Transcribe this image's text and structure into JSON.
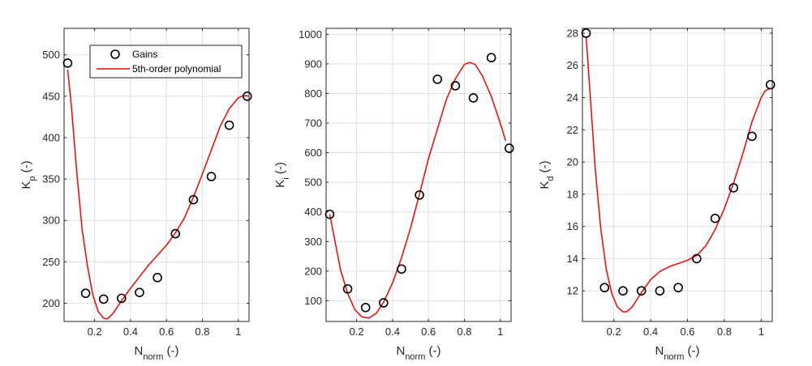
{
  "chart_data": [
    {
      "type": "scatter",
      "title": "",
      "xlabel": {
        "main": "N",
        "sub": "norm",
        "suffix": " (-)"
      },
      "ylabel": {
        "main": "K",
        "sub": "p",
        "suffix": " (-)"
      },
      "xlim": [
        0.03,
        1.06
      ],
      "ylim": [
        178,
        532
      ],
      "xticks": [
        0.2,
        0.4,
        0.6,
        0.8,
        1
      ],
      "xtick_labels": [
        "0.2",
        "0.4",
        "0.6",
        "0.8",
        "1"
      ],
      "yticks": [
        200,
        250,
        300,
        350,
        400,
        450,
        500
      ],
      "ytick_labels": [
        "200",
        "250",
        "300",
        "350",
        "400",
        "450",
        "500"
      ],
      "grid": true,
      "legend": {
        "position": "top-right",
        "entries": [
          "Gains",
          "5th-order polynomial"
        ]
      },
      "series": [
        {
          "name": "Gains",
          "kind": "markers",
          "color": "#000000",
          "x": [
            0.05,
            0.15,
            0.25,
            0.35,
            0.45,
            0.55,
            0.65,
            0.75,
            0.85,
            0.95,
            1.05
          ],
          "y": [
            490,
            212,
            205,
            206,
            213,
            231,
            284,
            325,
            353,
            415,
            450
          ]
        },
        {
          "name": "5th-order polynomial",
          "kind": "line",
          "color": "#ff0000",
          "x": [
            0.05,
            0.07,
            0.1,
            0.13,
            0.16,
            0.19,
            0.22,
            0.25,
            0.27,
            0.3,
            0.35,
            0.4,
            0.45,
            0.5,
            0.55,
            0.6,
            0.65,
            0.7,
            0.75,
            0.8,
            0.85,
            0.9,
            0.95,
            1.0,
            1.02,
            1.05
          ],
          "y": [
            482,
            440,
            360,
            290,
            245,
            210,
            190,
            182,
            181,
            187,
            203,
            218,
            232,
            246,
            258,
            270,
            285,
            303,
            328,
            356,
            385,
            414,
            435,
            448,
            450,
            451
          ]
        }
      ]
    },
    {
      "type": "scatter",
      "title": "",
      "xlabel": {
        "main": "N",
        "sub": "norm",
        "suffix": " (-)"
      },
      "ylabel": {
        "main": "K",
        "sub": "i",
        "suffix": " (-)"
      },
      "xlim": [
        0.03,
        1.06
      ],
      "ylim": [
        30,
        1020
      ],
      "xticks": [
        0.2,
        0.4,
        0.6,
        0.8,
        1
      ],
      "xtick_labels": [
        "0.2",
        "0.4",
        "0.6",
        "0.8",
        "1"
      ],
      "yticks": [
        100,
        200,
        300,
        400,
        500,
        600,
        700,
        800,
        900,
        1000
      ],
      "ytick_labels": [
        "100",
        "200",
        "300",
        "400",
        "500",
        "600",
        "700",
        "800",
        "900",
        "1000"
      ],
      "grid": true,
      "series": [
        {
          "name": "Gains",
          "kind": "markers",
          "color": "#000000",
          "x": [
            0.05,
            0.15,
            0.25,
            0.35,
            0.45,
            0.55,
            0.65,
            0.75,
            0.85,
            0.95,
            1.05
          ],
          "y": [
            392,
            140,
            77,
            93,
            207,
            457,
            848,
            826,
            785,
            921,
            615
          ]
        },
        {
          "name": "5th-order polynomial",
          "kind": "line",
          "color": "#ff0000",
          "x": [
            0.05,
            0.08,
            0.11,
            0.15,
            0.19,
            0.23,
            0.27,
            0.31,
            0.35,
            0.4,
            0.45,
            0.5,
            0.55,
            0.6,
            0.65,
            0.7,
            0.75,
            0.8,
            0.83,
            0.86,
            0.9,
            0.95,
            1.0,
            1.03
          ],
          "y": [
            392,
            300,
            205,
            125,
            70,
            45,
            42,
            58,
            95,
            160,
            245,
            345,
            460,
            580,
            680,
            780,
            850,
            898,
            905,
            898,
            860,
            790,
            700,
            640
          ]
        }
      ]
    },
    {
      "type": "scatter",
      "title": "",
      "xlabel": {
        "main": "N",
        "sub": "norm",
        "suffix": " (-)"
      },
      "ylabel": {
        "main": "K",
        "sub": "d",
        "suffix": " (-)"
      },
      "xlim": [
        0.03,
        1.06
      ],
      "ylim": [
        10.1,
        28.3
      ],
      "xticks": [
        0.2,
        0.4,
        0.6,
        0.8,
        1
      ],
      "xtick_labels": [
        "0.2",
        "0.4",
        "0.6",
        "0.8",
        "1"
      ],
      "yticks": [
        12,
        14,
        16,
        18,
        20,
        22,
        24,
        26,
        28
      ],
      "ytick_labels": [
        "12",
        "14",
        "16",
        "18",
        "20",
        "22",
        "24",
        "26",
        "28"
      ],
      "grid": true,
      "series": [
        {
          "name": "Gains",
          "kind": "markers",
          "color": "#000000",
          "x": [
            0.05,
            0.15,
            0.25,
            0.35,
            0.45,
            0.55,
            0.65,
            0.75,
            0.85,
            0.95,
            1.05
          ],
          "y": [
            28.0,
            12.2,
            12.0,
            12.0,
            12.0,
            12.2,
            14.0,
            16.5,
            18.4,
            21.6,
            24.8
          ]
        },
        {
          "name": "5th-order polynomial",
          "kind": "line",
          "color": "#ff0000",
          "x": [
            0.05,
            0.07,
            0.1,
            0.13,
            0.16,
            0.19,
            0.22,
            0.25,
            0.27,
            0.3,
            0.35,
            0.4,
            0.45,
            0.5,
            0.55,
            0.6,
            0.65,
            0.7,
            0.75,
            0.8,
            0.85,
            0.9,
            0.95,
            1.0,
            1.02,
            1.05
          ],
          "y": [
            27.8,
            24.5,
            19.5,
            15.8,
            13.3,
            11.8,
            11.0,
            10.7,
            10.7,
            11.0,
            11.9,
            12.7,
            13.2,
            13.5,
            13.7,
            13.9,
            14.2,
            14.8,
            15.8,
            17.1,
            18.7,
            20.5,
            22.5,
            24.0,
            24.4,
            24.6
          ]
        }
      ]
    }
  ]
}
